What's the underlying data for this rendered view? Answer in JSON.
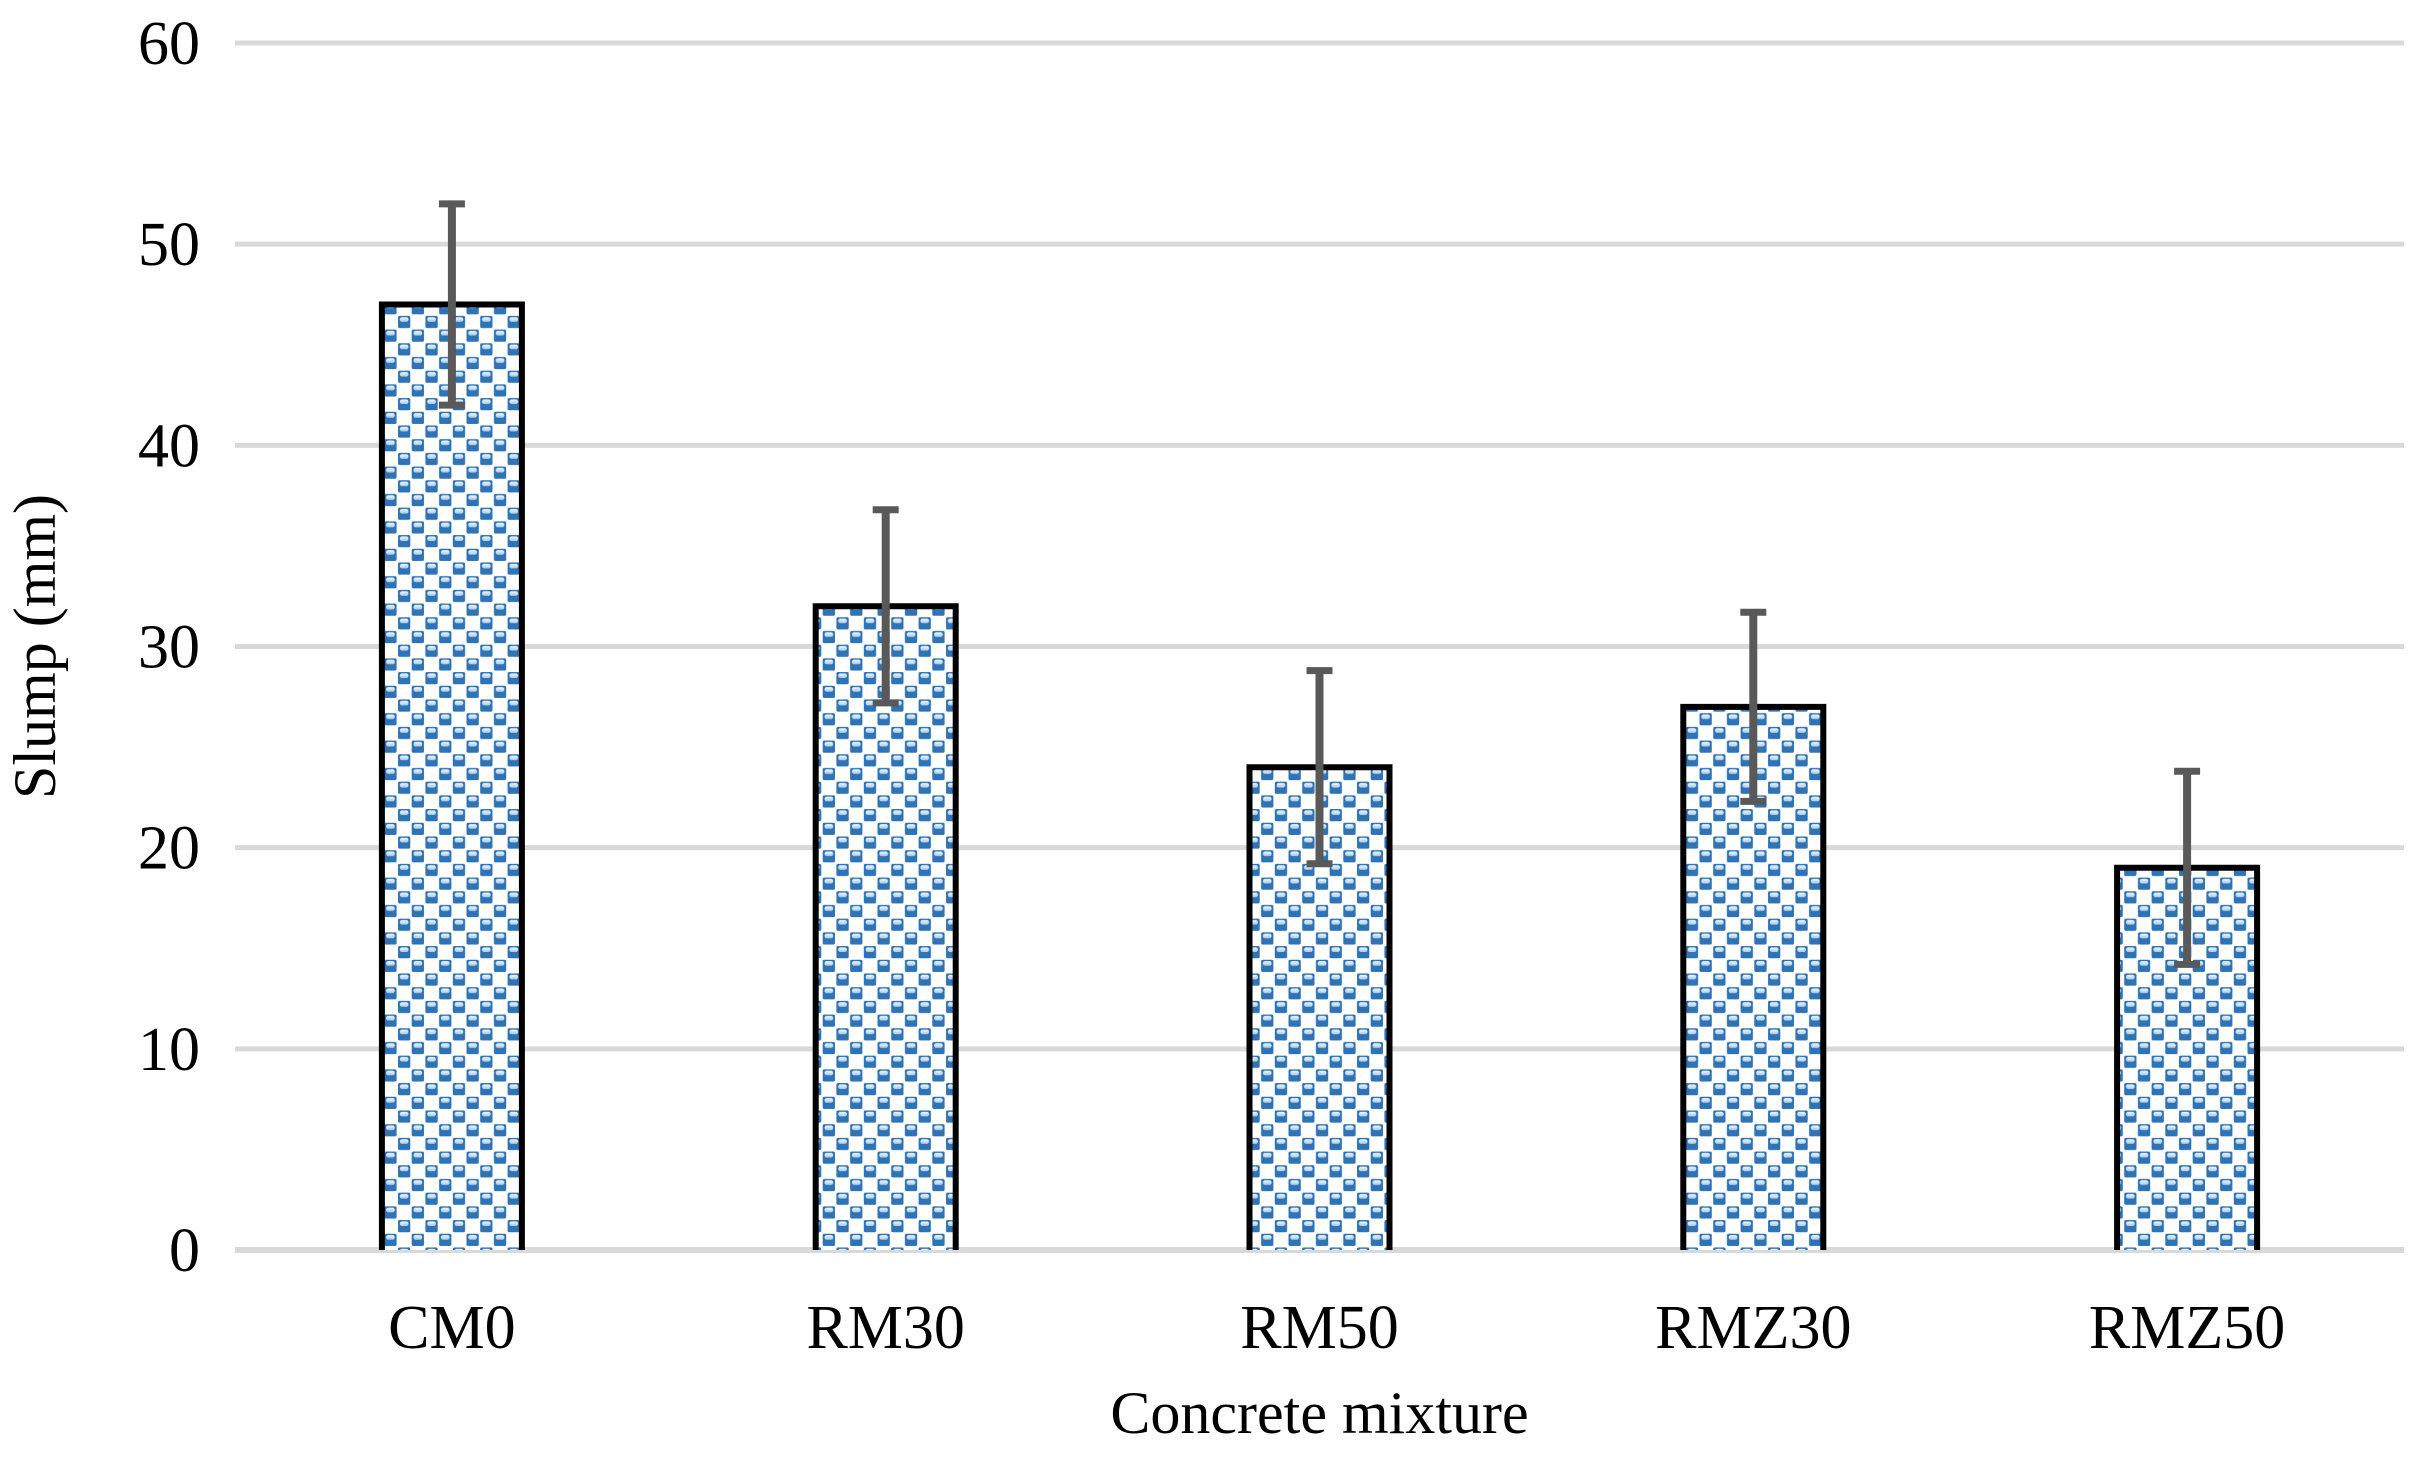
{
  "chart_data": {
    "type": "bar",
    "categories": [
      "CM0",
      "RM30",
      "RM50",
      "RMZ30",
      "RMZ50"
    ],
    "values": [
      47,
      32,
      24,
      27,
      19
    ],
    "error_bars": [
      5.0,
      4.8,
      4.8,
      4.7,
      4.8
    ],
    "title": "",
    "xlabel": "Concrete mixture",
    "ylabel": "Slump (mm)",
    "ylim": [
      0,
      60
    ],
    "ytick_step": 10,
    "yticks": [
      "0",
      "10",
      "20",
      "30",
      "40",
      "50",
      "60"
    ],
    "grid": "horizontal",
    "legend": "none",
    "style": {
      "bar_fill_pattern": "glossy-blue-ball-checkerboard",
      "pattern_blue": "#2E73B6",
      "pattern_highlight_light": "#F2F8FD",
      "pattern_highlight_dark": "#A9C8E6",
      "bar_outline_color": "#000000",
      "error_bar_color": "#595959",
      "gridline_color": "#D9D9D9",
      "text_color": "#000000",
      "background": "#FFFFFF"
    }
  }
}
